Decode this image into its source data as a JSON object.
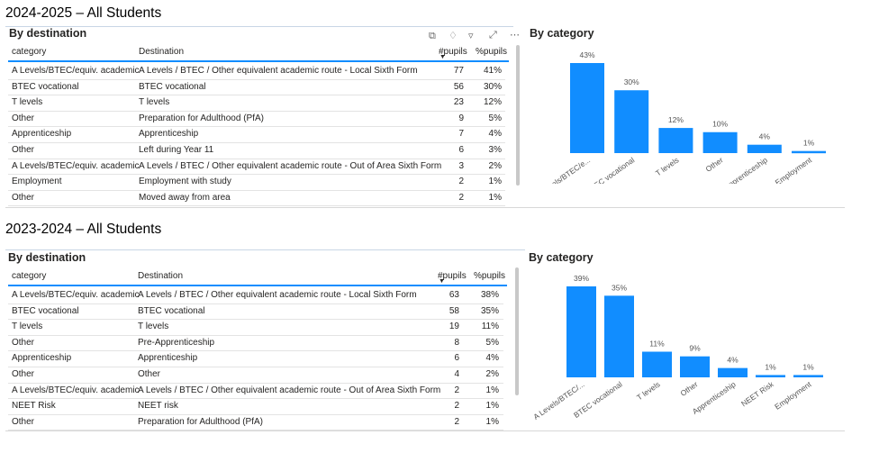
{
  "sections": [
    {
      "year_title": "2024-2025 – All Students",
      "table": {
        "title": "By destination",
        "headers": [
          "category",
          "Destination",
          "#pupils",
          "%pupils"
        ],
        "rows": [
          [
            "A Levels/BTEC/equiv. academic",
            "A Levels / BTEC / Other equivalent academic route - Local Sixth Form",
            "77",
            "41%"
          ],
          [
            "BTEC vocational",
            "BTEC vocational",
            "56",
            "30%"
          ],
          [
            "T levels",
            "T levels",
            "23",
            "12%"
          ],
          [
            "Other",
            "Preparation for Adulthood (PfA)",
            "9",
            "5%"
          ],
          [
            "Apprenticeship",
            "Apprenticeship",
            "7",
            "4%"
          ],
          [
            "Other",
            "Left during Year 11",
            "6",
            "3%"
          ],
          [
            "A Levels/BTEC/equiv. academic",
            "A Levels / BTEC / Other equivalent academic route - Out of Area Sixth Form",
            "3",
            "2%"
          ],
          [
            "Employment",
            "Employment with study",
            "2",
            "1%"
          ],
          [
            "Other",
            "Moved away from area",
            "2",
            "1%"
          ]
        ]
      },
      "chart_data": {
        "type": "bar",
        "title": "By category",
        "categories": [
          "A Levels/BTEC/e...",
          "BTEC vocational",
          "T levels",
          "Other",
          "Apprenticeship",
          "Employment"
        ],
        "values": [
          43,
          30,
          12,
          10,
          4,
          1
        ],
        "data_labels": [
          "43%",
          "30%",
          "12%",
          "10%",
          "4%",
          "1%"
        ],
        "ylim": [
          0,
          43
        ],
        "color": "#118dff"
      }
    },
    {
      "year_title": "2023-2024 – All Students",
      "table": {
        "title": "By destination",
        "headers": [
          "category",
          "Destination",
          "#pupils",
          "%pupils"
        ],
        "rows": [
          [
            "A Levels/BTEC/equiv. academic",
            "A Levels / BTEC / Other equivalent academic route - Local Sixth Form",
            "63",
            "38%"
          ],
          [
            "BTEC vocational",
            "BTEC vocational",
            "58",
            "35%"
          ],
          [
            "T levels",
            "T levels",
            "19",
            "11%"
          ],
          [
            "Other",
            "Pre-Apprenticeship",
            "8",
            "5%"
          ],
          [
            "Apprenticeship",
            "Apprenticeship",
            "6",
            "4%"
          ],
          [
            "Other",
            "Other",
            "4",
            "2%"
          ],
          [
            "A Levels/BTEC/equiv. academic",
            "A Levels / BTEC / Other equivalent academic route - Out of Area Sixth Form",
            "2",
            "1%"
          ],
          [
            "NEET Risk",
            "NEET risk",
            "2",
            "1%"
          ],
          [
            "Other",
            "Preparation for Adulthood (PfA)",
            "2",
            "1%"
          ]
        ]
      },
      "chart_data": {
        "type": "bar",
        "title": "By category",
        "categories": [
          "A Levels/BTEC/...",
          "BTEC vocational",
          "T levels",
          "Other",
          "Apprenticeship",
          "NEET Risk",
          "Employment"
        ],
        "values": [
          39,
          35,
          11,
          9,
          4,
          1,
          1
        ],
        "data_labels": [
          "39%",
          "35%",
          "11%",
          "9%",
          "4%",
          "1%",
          "1%"
        ],
        "ylim": [
          0,
          39
        ],
        "color": "#118dff"
      }
    }
  ],
  "toolbar_icons": [
    "copy-icon",
    "bell-icon",
    "filter-icon",
    "focus-mode-icon",
    "more-options-icon"
  ]
}
